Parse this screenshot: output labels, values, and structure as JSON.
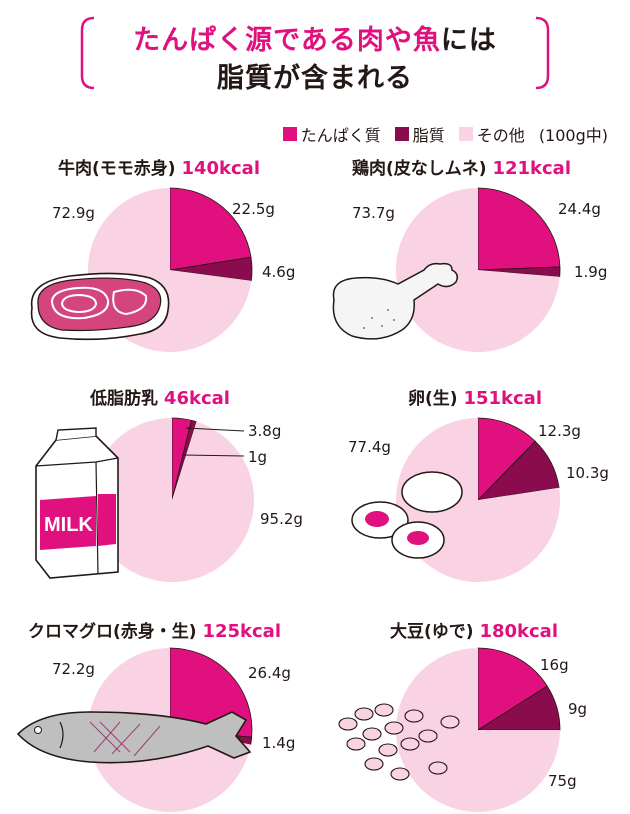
{
  "header": {
    "title_part_pink": "たんぱく源である肉や魚",
    "title_part_black": "には",
    "title_line2": "脂質が含まれる"
  },
  "legend": {
    "items": [
      {
        "label": "たんぱく質",
        "color": "#e0117f"
      },
      {
        "label": "脂質",
        "color": "#8a0c4e"
      },
      {
        "label": "その他",
        "color": "#f9d3e3"
      }
    ],
    "unit": "(100g中)"
  },
  "colors": {
    "protein": "#e0117f",
    "fat": "#8a0c4e",
    "other": "#f9d3e3",
    "accent": "#e0117f"
  },
  "chart_data": [
    {
      "type": "pie",
      "title": "牛肉(モモ赤身)",
      "kcal": "140kcal",
      "categories": [
        "たんぱく質",
        "脂質",
        "その他"
      ],
      "values": [
        22.5,
        4.6,
        72.9
      ],
      "labels": [
        "22.5g",
        "4.6g",
        "72.9g"
      ]
    },
    {
      "type": "pie",
      "title": "鶏肉(皮なしムネ)",
      "kcal": "121kcal",
      "categories": [
        "たんぱく質",
        "脂質",
        "その他"
      ],
      "values": [
        24.4,
        1.9,
        73.7
      ],
      "labels": [
        "24.4g",
        "1.9g",
        "73.7g"
      ]
    },
    {
      "type": "pie",
      "title": "低脂肪乳",
      "kcal": "46kcal",
      "categories": [
        "たんぱく質",
        "脂質",
        "その他"
      ],
      "values": [
        3.8,
        1,
        95.2
      ],
      "labels": [
        "3.8g",
        "1g",
        "95.2g"
      ]
    },
    {
      "type": "pie",
      "title": "卵(生)",
      "kcal": "151kcal",
      "categories": [
        "たんぱく質",
        "脂質",
        "その他"
      ],
      "values": [
        12.3,
        10.3,
        77.4
      ],
      "labels": [
        "12.3g",
        "10.3g",
        "77.4g"
      ]
    },
    {
      "type": "pie",
      "title": "クロマグロ(赤身・生)",
      "kcal": "125kcal",
      "categories": [
        "たんぱく質",
        "脂質",
        "その他"
      ],
      "values": [
        26.4,
        1.4,
        72.2
      ],
      "labels": [
        "26.4g",
        "1.4g",
        "72.2g"
      ]
    },
    {
      "type": "pie",
      "title": "大豆(ゆで)",
      "kcal": "180kcal",
      "categories": [
        "たんぱく質",
        "脂質",
        "その他"
      ],
      "values": [
        16,
        9,
        75
      ],
      "labels": [
        "16g",
        "9g",
        "75g"
      ]
    }
  ],
  "illustrations": {
    "milk_carton_text": "MILK"
  }
}
